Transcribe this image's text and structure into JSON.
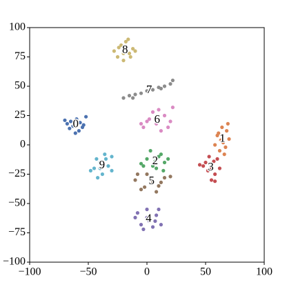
{
  "chart_data": {
    "type": "scatter",
    "xlim": [
      -100,
      100
    ],
    "ylim": [
      -100,
      100
    ],
    "xticks": [
      {
        "value": -100,
        "label": "−100"
      },
      {
        "value": -50,
        "label": "−50"
      },
      0,
      50,
      100
    ],
    "yticks": [
      {
        "value": -100,
        "label": "−100"
      },
      {
        "value": -75,
        "label": "−75"
      },
      {
        "value": -50,
        "label": "−50"
      },
      {
        "value": -25,
        "label": "−25"
      },
      0,
      25,
      50,
      75,
      100
    ],
    "series": [
      {
        "name": "0",
        "color": "#4C72B0",
        "x": [
          -65,
          -60,
          -55,
          -68,
          -58,
          -52,
          -63,
          -57,
          -70,
          -54,
          -61,
          -66
        ],
        "values": [
          20,
          22,
          15,
          18,
          12,
          24,
          16,
          19,
          21,
          17,
          10,
          14
        ]
      },
      {
        "name": "1",
        "color": "#DD8452",
        "x": [
          60,
          65,
          68,
          62,
          70,
          58,
          64,
          66,
          61,
          67,
          63,
          69
        ],
        "values": [
          8,
          2,
          12,
          -5,
          5,
          0,
          15,
          -8,
          10,
          -2,
          4,
          18
        ]
      },
      {
        "name": "2",
        "color": "#55A868",
        "x": [
          0,
          5,
          10,
          15,
          -5,
          8,
          12,
          3,
          18,
          -3,
          7,
          14
        ],
        "values": [
          -12,
          -18,
          -10,
          -15,
          -16,
          -20,
          -8,
          -5,
          -12,
          -18,
          -14,
          -22
        ]
      },
      {
        "name": "3",
        "color": "#C44E52",
        "x": [
          50,
          55,
          60,
          48,
          58,
          53,
          62,
          45,
          57,
          52,
          55,
          58
        ],
        "values": [
          -15,
          -20,
          -12,
          -18,
          -25,
          -10,
          -20,
          -17,
          -14,
          -22,
          -30,
          -31
        ]
      },
      {
        "name": "4",
        "color": "#8172B3",
        "x": [
          -8,
          0,
          8,
          -5,
          5,
          10,
          -10,
          2,
          -3,
          7,
          0,
          12
        ],
        "values": [
          -58,
          -62,
          -60,
          -68,
          -70,
          -55,
          -62,
          -65,
          -72,
          -65,
          -55,
          -68
        ]
      },
      {
        "name": "5",
        "color": "#937860",
        "x": [
          -10,
          0,
          10,
          15,
          -5,
          5,
          20,
          -8,
          8,
          3,
          12,
          -2
        ],
        "values": [
          -30,
          -25,
          -35,
          -28,
          -38,
          -32,
          -27,
          -25,
          -40,
          -28,
          -32,
          -36
        ]
      },
      {
        "name": "6",
        "color": "#DA8BC3",
        "x": [
          -3,
          2,
          8,
          15,
          20,
          5,
          12,
          -5,
          10,
          18,
          0,
          22
        ],
        "values": [
          15,
          22,
          18,
          25,
          20,
          28,
          12,
          18,
          30,
          15,
          20,
          32
        ]
      },
      {
        "name": "7",
        "color": "#8C8C8C",
        "x": [
          -20,
          -15,
          -10,
          -5,
          0,
          5,
          10,
          15,
          20,
          22,
          -12,
          12
        ],
        "values": [
          40,
          42,
          43,
          44,
          46,
          47,
          49,
          50,
          52,
          55,
          40,
          48
        ]
      },
      {
        "name": "8",
        "color": "#CCB974",
        "x": [
          -28,
          -22,
          -15,
          -18,
          -25,
          -12,
          -20,
          -16,
          -24,
          -10,
          -20,
          -14
        ],
        "values": [
          80,
          85,
          78,
          88,
          75,
          82,
          72,
          90,
          83,
          80,
          78,
          75
        ]
      },
      {
        "name": "9",
        "color": "#64B5CD",
        "x": [
          -45,
          -40,
          -35,
          -30,
          -38,
          -42,
          -33,
          -48,
          -36,
          -40,
          -30,
          -43
        ],
        "values": [
          -20,
          -15,
          -12,
          -10,
          -25,
          -28,
          -18,
          -22,
          -8,
          -20,
          -22,
          -12
        ]
      }
    ]
  }
}
